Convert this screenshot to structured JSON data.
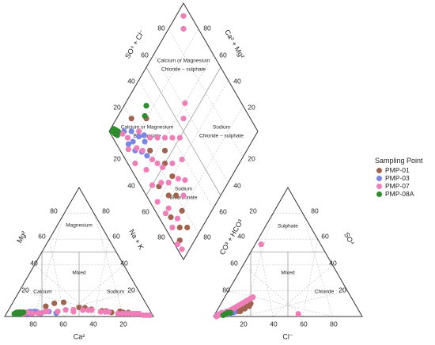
{
  "chart_data": {
    "type": "scatter",
    "title": "",
    "legend": {
      "title": "Sampling Point",
      "placement": "right"
    },
    "ticks": [
      "20",
      "40",
      "60",
      "80"
    ],
    "axes": {
      "cation_left": "Mg²",
      "cation_right": "Na + K",
      "cation_bottom": "Ca²",
      "anion_left": "CO³ + HCO³",
      "anion_right": "SO⁴",
      "anion_bottom": "Cl⁻",
      "diamond_upper_left": "SO⁴ + Cl⁻",
      "diamond_upper_right": "Ca² + Mg²"
    },
    "zones": {
      "magnesium": "Magnesium",
      "cation_mixed": "Mixed",
      "calcium": "Calcium",
      "sodium": "Sodium",
      "sulphate": "Sulphate",
      "anion_mixed": "Mixed",
      "chloride": "Chloride",
      "ca_mg_cl_1": "Calcium or Magnesium",
      "ca_mg_cl_2": "Chloride – sulphate",
      "ca_mg_bic_1": "Calcium or Magnesium",
      "ca_mg_bic_2": "Bicarbonate",
      "na_cl_1": "Sodium",
      "na_cl_2": "Chloride – sulphate",
      "na_bic_1": "Sodium",
      "na_bic_2": "Bicarbonate"
    },
    "series": [
      {
        "name": "PMP-01",
        "color": "#a0634f",
        "points": [
          [
            52,
            18,
            6
          ],
          [
            48,
            22,
            8
          ],
          [
            40,
            40,
            6
          ],
          [
            30,
            58,
            4
          ],
          [
            20,
            74,
            4
          ],
          [
            15,
            80,
            3
          ],
          [
            10,
            85,
            2
          ],
          [
            45,
            28,
            9
          ],
          [
            35,
            50,
            5
          ],
          [
            25,
            66,
            3
          ],
          [
            18,
            76,
            3
          ],
          [
            12,
            82,
            2
          ],
          [
            38,
            45,
            6
          ],
          [
            28,
            62,
            4
          ]
        ]
      },
      {
        "name": "PMP-03",
        "color": "#7b85e6",
        "points": [
          [
            70,
            12,
            2
          ],
          [
            62,
            16,
            3
          ],
          [
            56,
            20,
            3
          ],
          [
            50,
            26,
            2
          ],
          [
            60,
            14,
            3
          ],
          [
            66,
            10,
            2
          ],
          [
            58,
            18,
            2
          ],
          [
            54,
            22,
            3
          ],
          [
            64,
            12,
            3
          ],
          [
            68,
            14,
            3
          ]
        ]
      },
      {
        "name": "PMP-07",
        "color": "#ee7fb8",
        "points": [
          [
            80,
            10,
            2
          ],
          [
            74,
            12,
            3
          ],
          [
            68,
            14,
            2
          ],
          [
            60,
            18,
            2
          ],
          [
            52,
            20,
            3
          ],
          [
            44,
            30,
            4
          ],
          [
            36,
            40,
            4
          ],
          [
            28,
            52,
            3
          ],
          [
            20,
            66,
            2
          ],
          [
            14,
            74,
            2
          ],
          [
            8,
            84,
            2
          ],
          [
            4,
            92,
            1
          ],
          [
            2,
            96,
            1
          ],
          [
            78,
            8,
            3
          ],
          [
            72,
            10,
            2
          ],
          [
            64,
            14,
            2
          ],
          [
            56,
            20,
            3
          ],
          [
            48,
            26,
            3
          ],
          [
            40,
            34,
            4
          ],
          [
            32,
            46,
            4
          ],
          [
            24,
            58,
            3
          ],
          [
            16,
            72,
            2
          ],
          [
            10,
            80,
            2
          ],
          [
            6,
            88,
            1
          ],
          [
            42,
            36,
            3
          ],
          [
            34,
            44,
            4
          ],
          [
            26,
            56,
            3
          ],
          [
            18,
            70,
            2
          ],
          [
            12,
            78,
            2
          ],
          [
            58,
            16,
            2
          ]
        ]
      },
      {
        "name": "PMP-08A",
        "color": "#2e8b2e",
        "points": [
          [
            84,
            6,
            2
          ],
          [
            82,
            8,
            2
          ],
          [
            80,
            8,
            3
          ],
          [
            86,
            5,
            2
          ],
          [
            78,
            10,
            3
          ],
          [
            83,
            7,
            3
          ],
          [
            81,
            9,
            2
          ],
          [
            85,
            6,
            3
          ]
        ]
      }
    ],
    "anion_points": {
      "PMP-01": [
        [
          80,
          4
        ],
        [
          78,
          6
        ],
        [
          76,
          6
        ],
        [
          74,
          8
        ],
        [
          72,
          8
        ],
        [
          70,
          10
        ],
        [
          82,
          4
        ]
      ],
      "PMP-03": [
        [
          88,
          2
        ],
        [
          86,
          4
        ],
        [
          84,
          4
        ],
        [
          85,
          3
        ]
      ],
      "PMP-07": [
        [
          96,
          1
        ],
        [
          94,
          2
        ],
        [
          92,
          2
        ],
        [
          90,
          3
        ],
        [
          88,
          4
        ],
        [
          86,
          5
        ],
        [
          84,
          6
        ],
        [
          82,
          7
        ],
        [
          80,
          8
        ],
        [
          78,
          9
        ],
        [
          76,
          10
        ],
        [
          74,
          11
        ],
        [
          72,
          12
        ],
        [
          70,
          13
        ],
        [
          68,
          14
        ],
        [
          66,
          15
        ],
        [
          98,
          0
        ],
        [
          97,
          1
        ],
        [
          95,
          2
        ],
        [
          93,
          3
        ],
        [
          91,
          3
        ],
        [
          89,
          4
        ],
        [
          42,
          2
        ],
        [
          40,
          56
        ]
      ],
      "PMP-08A": [
        [
          93,
          1
        ],
        [
          91,
          2
        ],
        [
          89,
          3
        ],
        [
          87,
          3
        ]
      ]
    },
    "diamond_points": {
      "PMP-01": [
        [
          0.2,
          0.1
        ],
        [
          0.3,
          0.2
        ],
        [
          0.2,
          0.35
        ],
        [
          0.25,
          0.5
        ],
        [
          0.15,
          0.65
        ],
        [
          0.18,
          0.8
        ],
        [
          0.1,
          0.85
        ],
        [
          0.2,
          0.7
        ],
        [
          0.12,
          0.55
        ],
        [
          0.08,
          0.75
        ],
        [
          0.05,
          0.9
        ],
        [
          0.15,
          0.9
        ],
        [
          0.25,
          0.6
        ],
        [
          0.3,
          0.45
        ]
      ],
      "PMP-03": [
        [
          0.1,
          0.1
        ],
        [
          0.15,
          0.15
        ],
        [
          0.12,
          0.2
        ],
        [
          0.18,
          0.22
        ],
        [
          0.2,
          0.28
        ],
        [
          0.14,
          0.3
        ],
        [
          0.1,
          0.25
        ],
        [
          0.16,
          0.35
        ],
        [
          0.08,
          0.18
        ],
        [
          0.22,
          0.25
        ]
      ],
      "PMP-07": [
        [
          0.05,
          0.05
        ],
        [
          0.08,
          0.1
        ],
        [
          0.1,
          0.15
        ],
        [
          0.12,
          0.25
        ],
        [
          0.15,
          0.3
        ],
        [
          0.1,
          0.4
        ],
        [
          0.08,
          0.5
        ],
        [
          0.05,
          0.6
        ],
        [
          0.1,
          0.7
        ],
        [
          0.05,
          0.8
        ],
        [
          0.02,
          0.9
        ],
        [
          0.03,
          0.95
        ],
        [
          0.2,
          0.2
        ],
        [
          0.25,
          0.3
        ],
        [
          0.3,
          0.35
        ],
        [
          0.35,
          0.4
        ],
        [
          0.4,
          0.45
        ],
        [
          0.2,
          0.45
        ],
        [
          0.15,
          0.55
        ],
        [
          0.3,
          0.55
        ],
        [
          0.2,
          0.6
        ],
        [
          0.25,
          0.75
        ],
        [
          0.12,
          0.8
        ],
        [
          0.06,
          0.7
        ],
        [
          0.18,
          0.4
        ],
        [
          0.22,
          0.5
        ],
        [
          0.28,
          0.65
        ],
        [
          0.32,
          0.7
        ],
        [
          0.05,
          0.3
        ],
        [
          0.06,
          0.2
        ],
        [
          0.38,
          0.6
        ],
        [
          0.45,
          0.5
        ],
        [
          0.55,
          0.45
        ],
        [
          0.62,
          0.4
        ],
        [
          0.95,
          0.05
        ],
        [
          0.9,
          0.1
        ]
      ],
      "PMP-08A": [
        [
          0.02,
          0.02
        ],
        [
          0.03,
          0.03
        ],
        [
          0.04,
          0.02
        ],
        [
          0.03,
          0.05
        ],
        [
          0.05,
          0.04
        ],
        [
          0.06,
          0.06
        ],
        [
          0.04,
          0.07
        ],
        [
          0.35,
          0.15
        ],
        [
          0.3,
          0.18
        ]
      ]
    }
  }
}
